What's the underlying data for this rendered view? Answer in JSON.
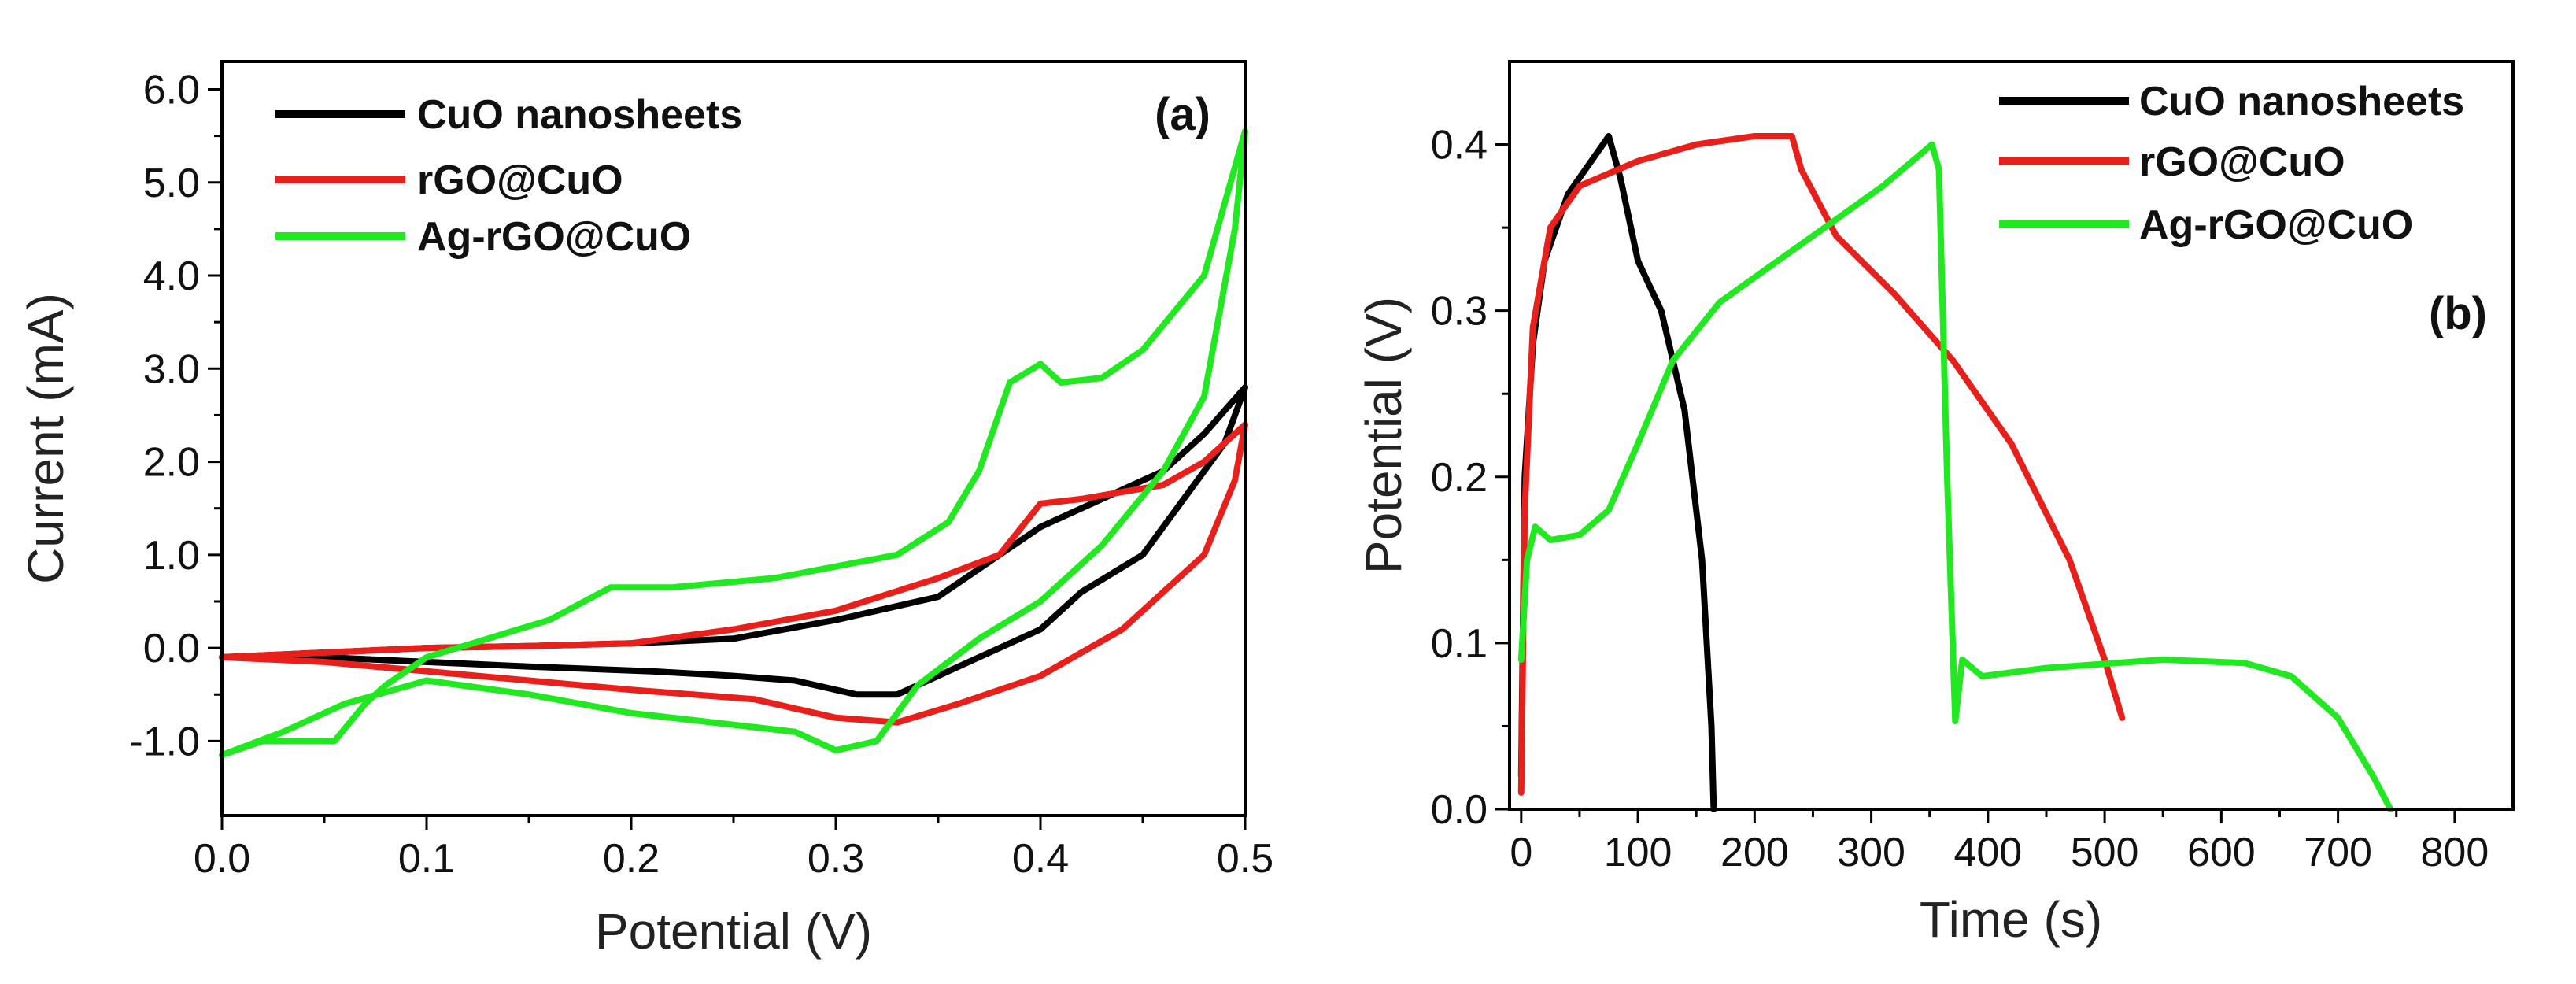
{
  "chart_data": [
    {
      "type": "line",
      "id": "panelA",
      "panel_label": "(a)",
      "xlabel": "Potential (V)",
      "ylabel": "Current (mA)",
      "xlim": [
        0.0,
        0.5
      ],
      "ylim": [
        -1.8,
        6.3
      ],
      "xticks": [
        0.0,
        0.1,
        0.2,
        0.3,
        0.4,
        0.5
      ],
      "xtick_labels": [
        "0.0",
        "0.1",
        "0.2",
        "0.3",
        "0.4",
        "0.5"
      ],
      "yticks": [
        -1.0,
        0.0,
        1.0,
        2.0,
        3.0,
        4.0,
        5.0,
        6.0
      ],
      "ytick_labels": [
        "-1.0",
        "0.0",
        "1.0",
        "2.0",
        "3.0",
        "4.0",
        "5.0",
        "6.0"
      ],
      "legend_position": "top-left",
      "series": [
        {
          "name": "CuO nanosheets",
          "color": "#000000",
          "points": [
            [
              0.0,
              -0.1
            ],
            [
              0.05,
              -0.05
            ],
            [
              0.1,
              0.0
            ],
            [
              0.15,
              0.02
            ],
            [
              0.2,
              0.05
            ],
            [
              0.25,
              0.1
            ],
            [
              0.3,
              0.3
            ],
            [
              0.35,
              0.55
            ],
            [
              0.38,
              1.0
            ],
            [
              0.4,
              1.3
            ],
            [
              0.43,
              1.6
            ],
            [
              0.46,
              1.9
            ],
            [
              0.48,
              2.3
            ],
            [
              0.5,
              2.8
            ],
            [
              0.49,
              2.2
            ],
            [
              0.47,
              1.6
            ],
            [
              0.45,
              1.0
            ],
            [
              0.42,
              0.6
            ],
            [
              0.4,
              0.2
            ],
            [
              0.37,
              -0.1
            ],
            [
              0.35,
              -0.3
            ],
            [
              0.33,
              -0.5
            ],
            [
              0.31,
              -0.5
            ],
            [
              0.28,
              -0.35
            ],
            [
              0.25,
              -0.3
            ],
            [
              0.21,
              -0.25
            ],
            [
              0.15,
              -0.2
            ],
            [
              0.1,
              -0.15
            ],
            [
              0.05,
              -0.1
            ],
            [
              0.0,
              -0.1
            ]
          ]
        },
        {
          "name": "rGO@CuO",
          "color": "#e8201c",
          "points": [
            [
              0.0,
              -0.1
            ],
            [
              0.05,
              -0.05
            ],
            [
              0.1,
              0.0
            ],
            [
              0.15,
              0.02
            ],
            [
              0.2,
              0.05
            ],
            [
              0.25,
              0.2
            ],
            [
              0.3,
              0.4
            ],
            [
              0.35,
              0.75
            ],
            [
              0.38,
              1.0
            ],
            [
              0.4,
              1.55
            ],
            [
              0.42,
              1.6
            ],
            [
              0.46,
              1.75
            ],
            [
              0.48,
              2.0
            ],
            [
              0.5,
              2.4
            ],
            [
              0.495,
              1.8
            ],
            [
              0.48,
              1.0
            ],
            [
              0.46,
              0.6
            ],
            [
              0.44,
              0.2
            ],
            [
              0.4,
              -0.3
            ],
            [
              0.36,
              -0.6
            ],
            [
              0.33,
              -0.8
            ],
            [
              0.3,
              -0.75
            ],
            [
              0.26,
              -0.55
            ],
            [
              0.2,
              -0.45
            ],
            [
              0.15,
              -0.35
            ],
            [
              0.1,
              -0.25
            ],
            [
              0.05,
              -0.15
            ],
            [
              0.0,
              -0.1
            ]
          ]
        },
        {
          "name": "Ag-rGO@CuO",
          "color": "#22e822",
          "points": [
            [
              0.0,
              -1.15
            ],
            [
              0.02,
              -1.0
            ],
            [
              0.055,
              -1.0
            ],
            [
              0.07,
              -0.6
            ],
            [
              0.08,
              -0.4
            ],
            [
              0.1,
              -0.1
            ],
            [
              0.13,
              0.1
            ],
            [
              0.16,
              0.3
            ],
            [
              0.19,
              0.65
            ],
            [
              0.22,
              0.65
            ],
            [
              0.27,
              0.75
            ],
            [
              0.33,
              1.0
            ],
            [
              0.355,
              1.35
            ],
            [
              0.37,
              1.9
            ],
            [
              0.385,
              2.85
            ],
            [
              0.4,
              3.05
            ],
            [
              0.41,
              2.85
            ],
            [
              0.43,
              2.9
            ],
            [
              0.45,
              3.2
            ],
            [
              0.48,
              4.0
            ],
            [
              0.5,
              5.55
            ],
            [
              0.495,
              4.5
            ],
            [
              0.48,
              2.7
            ],
            [
              0.46,
              1.9
            ],
            [
              0.43,
              1.1
            ],
            [
              0.4,
              0.5
            ],
            [
              0.37,
              0.1
            ],
            [
              0.34,
              -0.4
            ],
            [
              0.32,
              -1.0
            ],
            [
              0.3,
              -1.1
            ],
            [
              0.28,
              -0.9
            ],
            [
              0.2,
              -0.7
            ],
            [
              0.15,
              -0.5
            ],
            [
              0.1,
              -0.35
            ],
            [
              0.06,
              -0.6
            ],
            [
              0.03,
              -0.9
            ],
            [
              0.0,
              -1.15
            ]
          ]
        }
      ]
    },
    {
      "type": "line",
      "id": "panelB",
      "panel_label": "(b)",
      "xlabel": "Time (s)",
      "ylabel": "Potential (V)",
      "xlim": [
        -10,
        850
      ],
      "ylim": [
        0.0,
        0.45
      ],
      "xticks": [
        0,
        100,
        200,
        300,
        400,
        500,
        600,
        700,
        800
      ],
      "xtick_labels": [
        "0",
        "100",
        "200",
        "300",
        "400",
        "500",
        "600",
        "700",
        "800"
      ],
      "yticks": [
        0.0,
        0.1,
        0.2,
        0.3,
        0.4
      ],
      "ytick_labels": [
        "0.0",
        "0.1",
        "0.2",
        "0.3",
        "0.4"
      ],
      "legend_position": "top-right",
      "series": [
        {
          "name": "CuO nanosheets",
          "color": "#000000",
          "points": [
            [
              0,
              0.02
            ],
            [
              3,
              0.2
            ],
            [
              10,
              0.28
            ],
            [
              20,
              0.33
            ],
            [
              40,
              0.37
            ],
            [
              60,
              0.39
            ],
            [
              75,
              0.405
            ],
            [
              85,
              0.38
            ],
            [
              100,
              0.33
            ],
            [
              120,
              0.3
            ],
            [
              140,
              0.24
            ],
            [
              155,
              0.15
            ],
            [
              163,
              0.05
            ],
            [
              165,
              0.0
            ]
          ]
        },
        {
          "name": "rGO@CuO",
          "color": "#e8201c",
          "points": [
            [
              0,
              0.01
            ],
            [
              3,
              0.18
            ],
            [
              10,
              0.29
            ],
            [
              25,
              0.35
            ],
            [
              50,
              0.375
            ],
            [
              100,
              0.39
            ],
            [
              150,
              0.4
            ],
            [
              200,
              0.405
            ],
            [
              232,
              0.405
            ],
            [
              240,
              0.385
            ],
            [
              270,
              0.345
            ],
            [
              320,
              0.31
            ],
            [
              370,
              0.27
            ],
            [
              420,
              0.22
            ],
            [
              470,
              0.15
            ],
            [
              500,
              0.09
            ],
            [
              515,
              0.055
            ]
          ]
        },
        {
          "name": "Ag-rGO@CuO",
          "color": "#22e822",
          "points": [
            [
              0,
              0.09
            ],
            [
              5,
              0.15
            ],
            [
              12,
              0.17
            ],
            [
              25,
              0.162
            ],
            [
              50,
              0.165
            ],
            [
              75,
              0.18
            ],
            [
              100,
              0.22
            ],
            [
              130,
              0.27
            ],
            [
              170,
              0.305
            ],
            [
              220,
              0.33
            ],
            [
              270,
              0.355
            ],
            [
              310,
              0.375
            ],
            [
              352,
              0.4
            ],
            [
              358,
              0.385
            ],
            [
              365,
              0.2
            ],
            [
              372,
              0.053
            ],
            [
              378,
              0.09
            ],
            [
              395,
              0.08
            ],
            [
              450,
              0.085
            ],
            [
              550,
              0.09
            ],
            [
              620,
              0.088
            ],
            [
              660,
              0.08
            ],
            [
              700,
              0.055
            ],
            [
              730,
              0.02
            ],
            [
              745,
              0.0
            ]
          ]
        }
      ]
    }
  ]
}
